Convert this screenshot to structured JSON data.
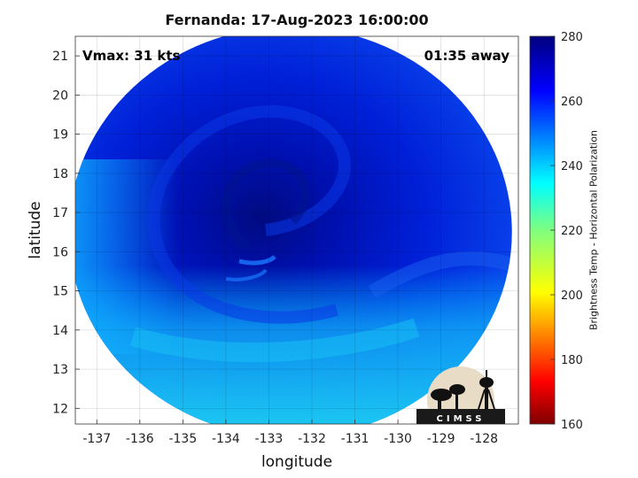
{
  "title": "Fernanda: 17-Aug-2023 16:00:00",
  "xlabel": "longitude",
  "ylabel": "latitude",
  "colorbar_label": "Brightness Temp - Horizontal Polarization",
  "annotations": {
    "vmax": "Vmax: 31 kts",
    "time_away": "01:35 away"
  },
  "logo_text": "CIMSS",
  "chart_data": {
    "type": "heatmap",
    "xlim": [
      -137.5,
      -127.2
    ],
    "ylim": [
      11.6,
      21.5
    ],
    "xticks": [
      -137,
      -136,
      -135,
      -134,
      -133,
      -132,
      -131,
      -130,
      -129,
      -128
    ],
    "yticks": [
      12,
      13,
      14,
      15,
      16,
      17,
      18,
      19,
      20,
      21
    ],
    "grid": true,
    "colorbar": {
      "min": 160,
      "max": 280,
      "ticks": [
        160,
        180,
        200,
        220,
        240,
        260,
        280
      ],
      "colormap": "jet"
    },
    "swath_center": {
      "lon": -132.5,
      "lat": 16.5
    },
    "storm_center": {
      "lon": -132.7,
      "lat": 16.6
    }
  }
}
